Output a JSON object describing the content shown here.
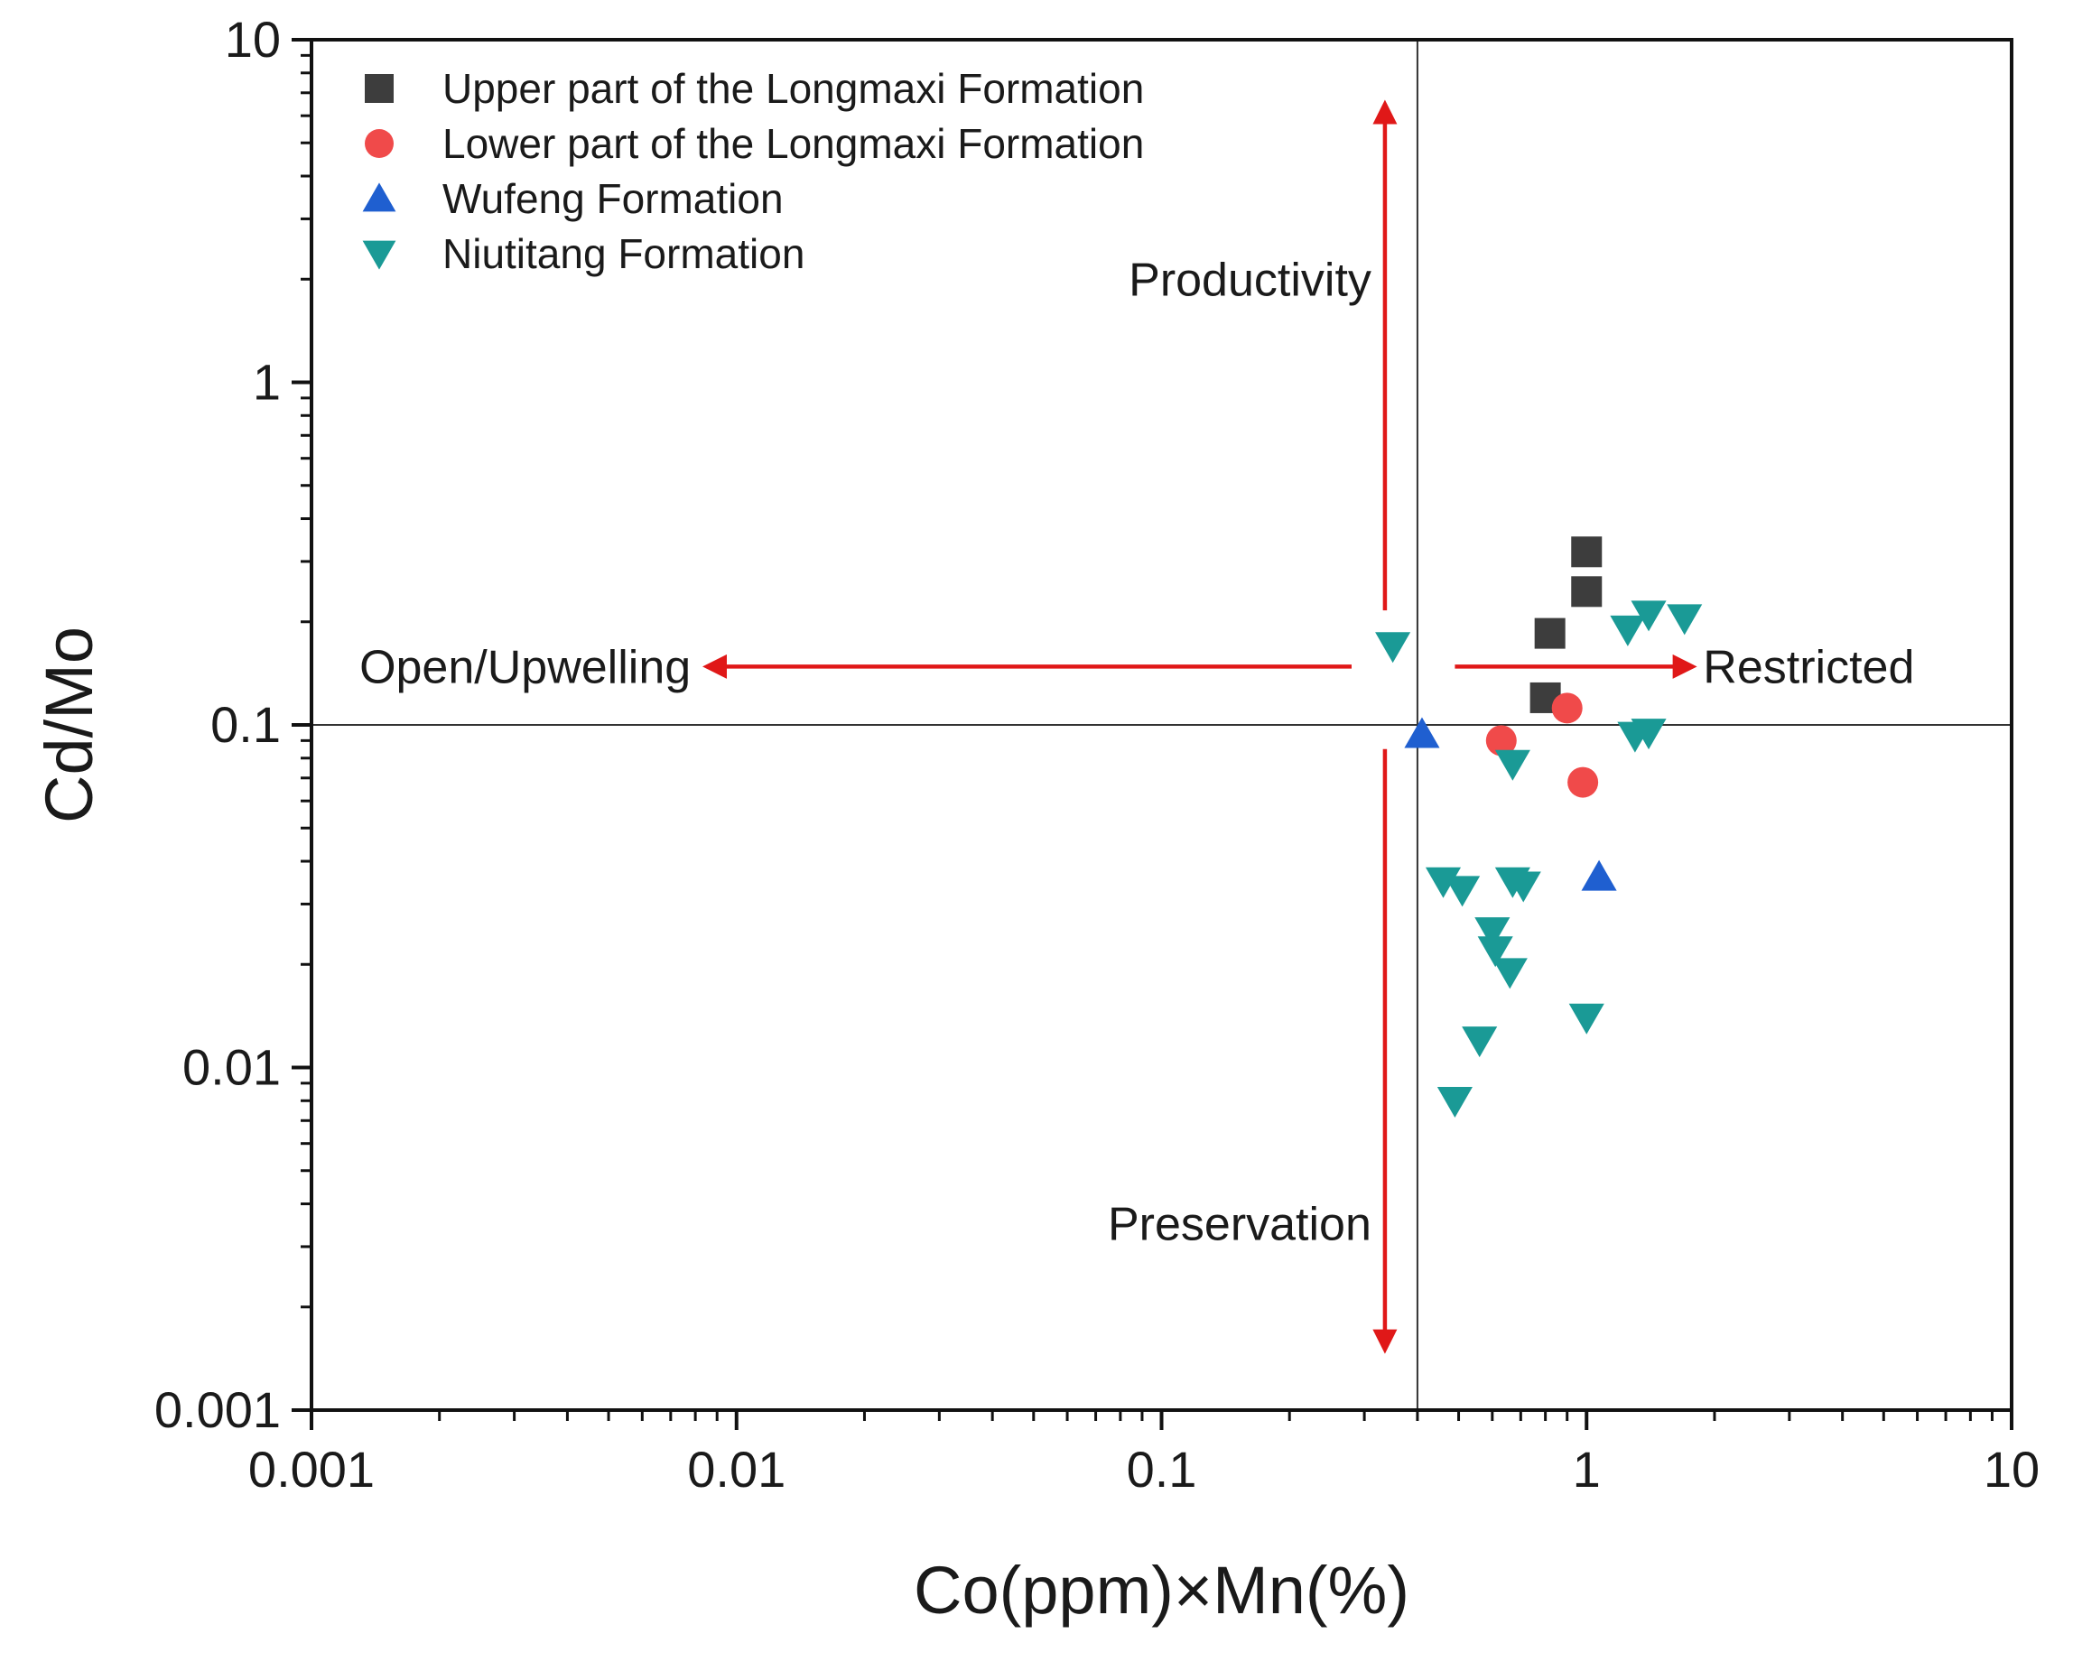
{
  "chart_data": {
    "type": "scatter",
    "title": "",
    "xlabel": "Co(ppm)×Mn(%)",
    "ylabel": "Cd/Mo",
    "xscale": "log",
    "yscale": "log",
    "xlim": [
      0.001,
      10
    ],
    "ylim": [
      0.001,
      10
    ],
    "xticks": [
      {
        "value": 0.001,
        "label": "0.001"
      },
      {
        "value": 0.01,
        "label": "0.01"
      },
      {
        "value": 0.1,
        "label": "0.1"
      },
      {
        "value": 1,
        "label": "1"
      },
      {
        "value": 10,
        "label": "10"
      }
    ],
    "yticks": [
      {
        "value": 0.001,
        "label": "0.001"
      },
      {
        "value": 0.01,
        "label": "0.01"
      },
      {
        "value": 0.1,
        "label": "0.1"
      },
      {
        "value": 1,
        "label": "1"
      },
      {
        "value": 10,
        "label": "10"
      }
    ],
    "reference_lines": {
      "x": 0.4,
      "y": 0.1
    },
    "legend_position": "top-left",
    "series": [
      {
        "name": "Upper part of the Longmaxi Formation",
        "marker": "square",
        "color": "#3d3d3d",
        "points": [
          [
            1.0,
            0.32
          ],
          [
            1.0,
            0.245
          ],
          [
            0.82,
            0.185
          ],
          [
            0.8,
            0.12
          ]
        ]
      },
      {
        "name": "Lower part of the Longmaxi Formation",
        "marker": "circle",
        "color": "#f04a4a",
        "points": [
          [
            0.9,
            0.112
          ],
          [
            0.63,
            0.09
          ],
          [
            0.98,
            0.068
          ]
        ]
      },
      {
        "name": "Wufeng Formation",
        "marker": "triangle-up",
        "color": "#1f5fd0",
        "points": [
          [
            0.41,
            0.094
          ],
          [
            1.07,
            0.036
          ]
        ]
      },
      {
        "name": "Niutitang Formation",
        "marker": "triangle-down",
        "color": "#1a9a96",
        "points": [
          [
            0.35,
            0.17
          ],
          [
            1.25,
            0.19
          ],
          [
            1.4,
            0.21
          ],
          [
            1.7,
            0.205
          ],
          [
            1.3,
            0.093
          ],
          [
            1.4,
            0.095
          ],
          [
            0.67,
            0.077
          ],
          [
            0.46,
            0.035
          ],
          [
            0.51,
            0.033
          ],
          [
            0.67,
            0.035
          ],
          [
            0.71,
            0.034
          ],
          [
            0.6,
            0.025
          ],
          [
            0.61,
            0.022
          ],
          [
            0.66,
            0.019
          ],
          [
            1.0,
            0.014
          ],
          [
            0.56,
            0.012
          ],
          [
            0.49,
            0.008
          ]
        ]
      }
    ],
    "annotations": [
      {
        "text": "Productivity",
        "direction": "up"
      },
      {
        "text": "Preservation",
        "direction": "down"
      },
      {
        "text": "Open/Upwelling",
        "direction": "left"
      },
      {
        "text": "Restricted",
        "direction": "right"
      }
    ]
  },
  "arrow_color": "#e01818"
}
